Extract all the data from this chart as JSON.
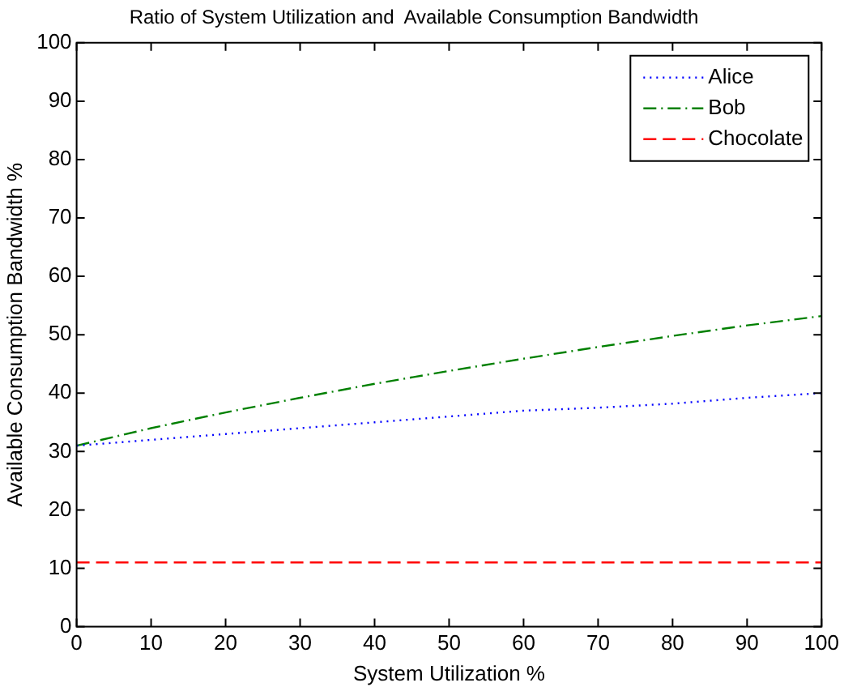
{
  "chart_data": {
    "type": "line",
    "title": "Ratio of System Utilization and  Available Consumption Bandwidth",
    "xlabel": "System Utilization %",
    "ylabel": "Available Consumption Bandwidth %",
    "x": [
      0,
      10,
      20,
      30,
      40,
      50,
      60,
      70,
      80,
      90,
      100
    ],
    "series": [
      {
        "name": "Alice",
        "color": "#0000ff",
        "line_style": "dotted",
        "values": [
          31,
          32,
          33,
          34,
          35,
          36,
          37,
          37.5,
          38.2,
          39.2,
          40
        ]
      },
      {
        "name": "Bob",
        "color": "#008000",
        "line_style": "dashdot",
        "values": [
          31,
          34,
          36.7,
          39.2,
          41.6,
          43.8,
          45.9,
          47.9,
          49.8,
          51.6,
          53.2
        ]
      },
      {
        "name": "Chocolate",
        "color": "#ff0000",
        "line_style": "dashed",
        "values": [
          11,
          11,
          11,
          11,
          11,
          11,
          11,
          11,
          11,
          11,
          11
        ]
      }
    ],
    "xlim": [
      0,
      100
    ],
    "xticks": [
      0,
      10,
      20,
      30,
      40,
      50,
      60,
      70,
      80,
      90,
      100
    ],
    "ylim": [
      0,
      100
    ],
    "yticks": [
      0,
      10,
      20,
      30,
      40,
      50,
      60,
      70,
      80,
      90,
      100
    ],
    "grid": false,
    "legend": "top right",
    "marker": "none"
  }
}
